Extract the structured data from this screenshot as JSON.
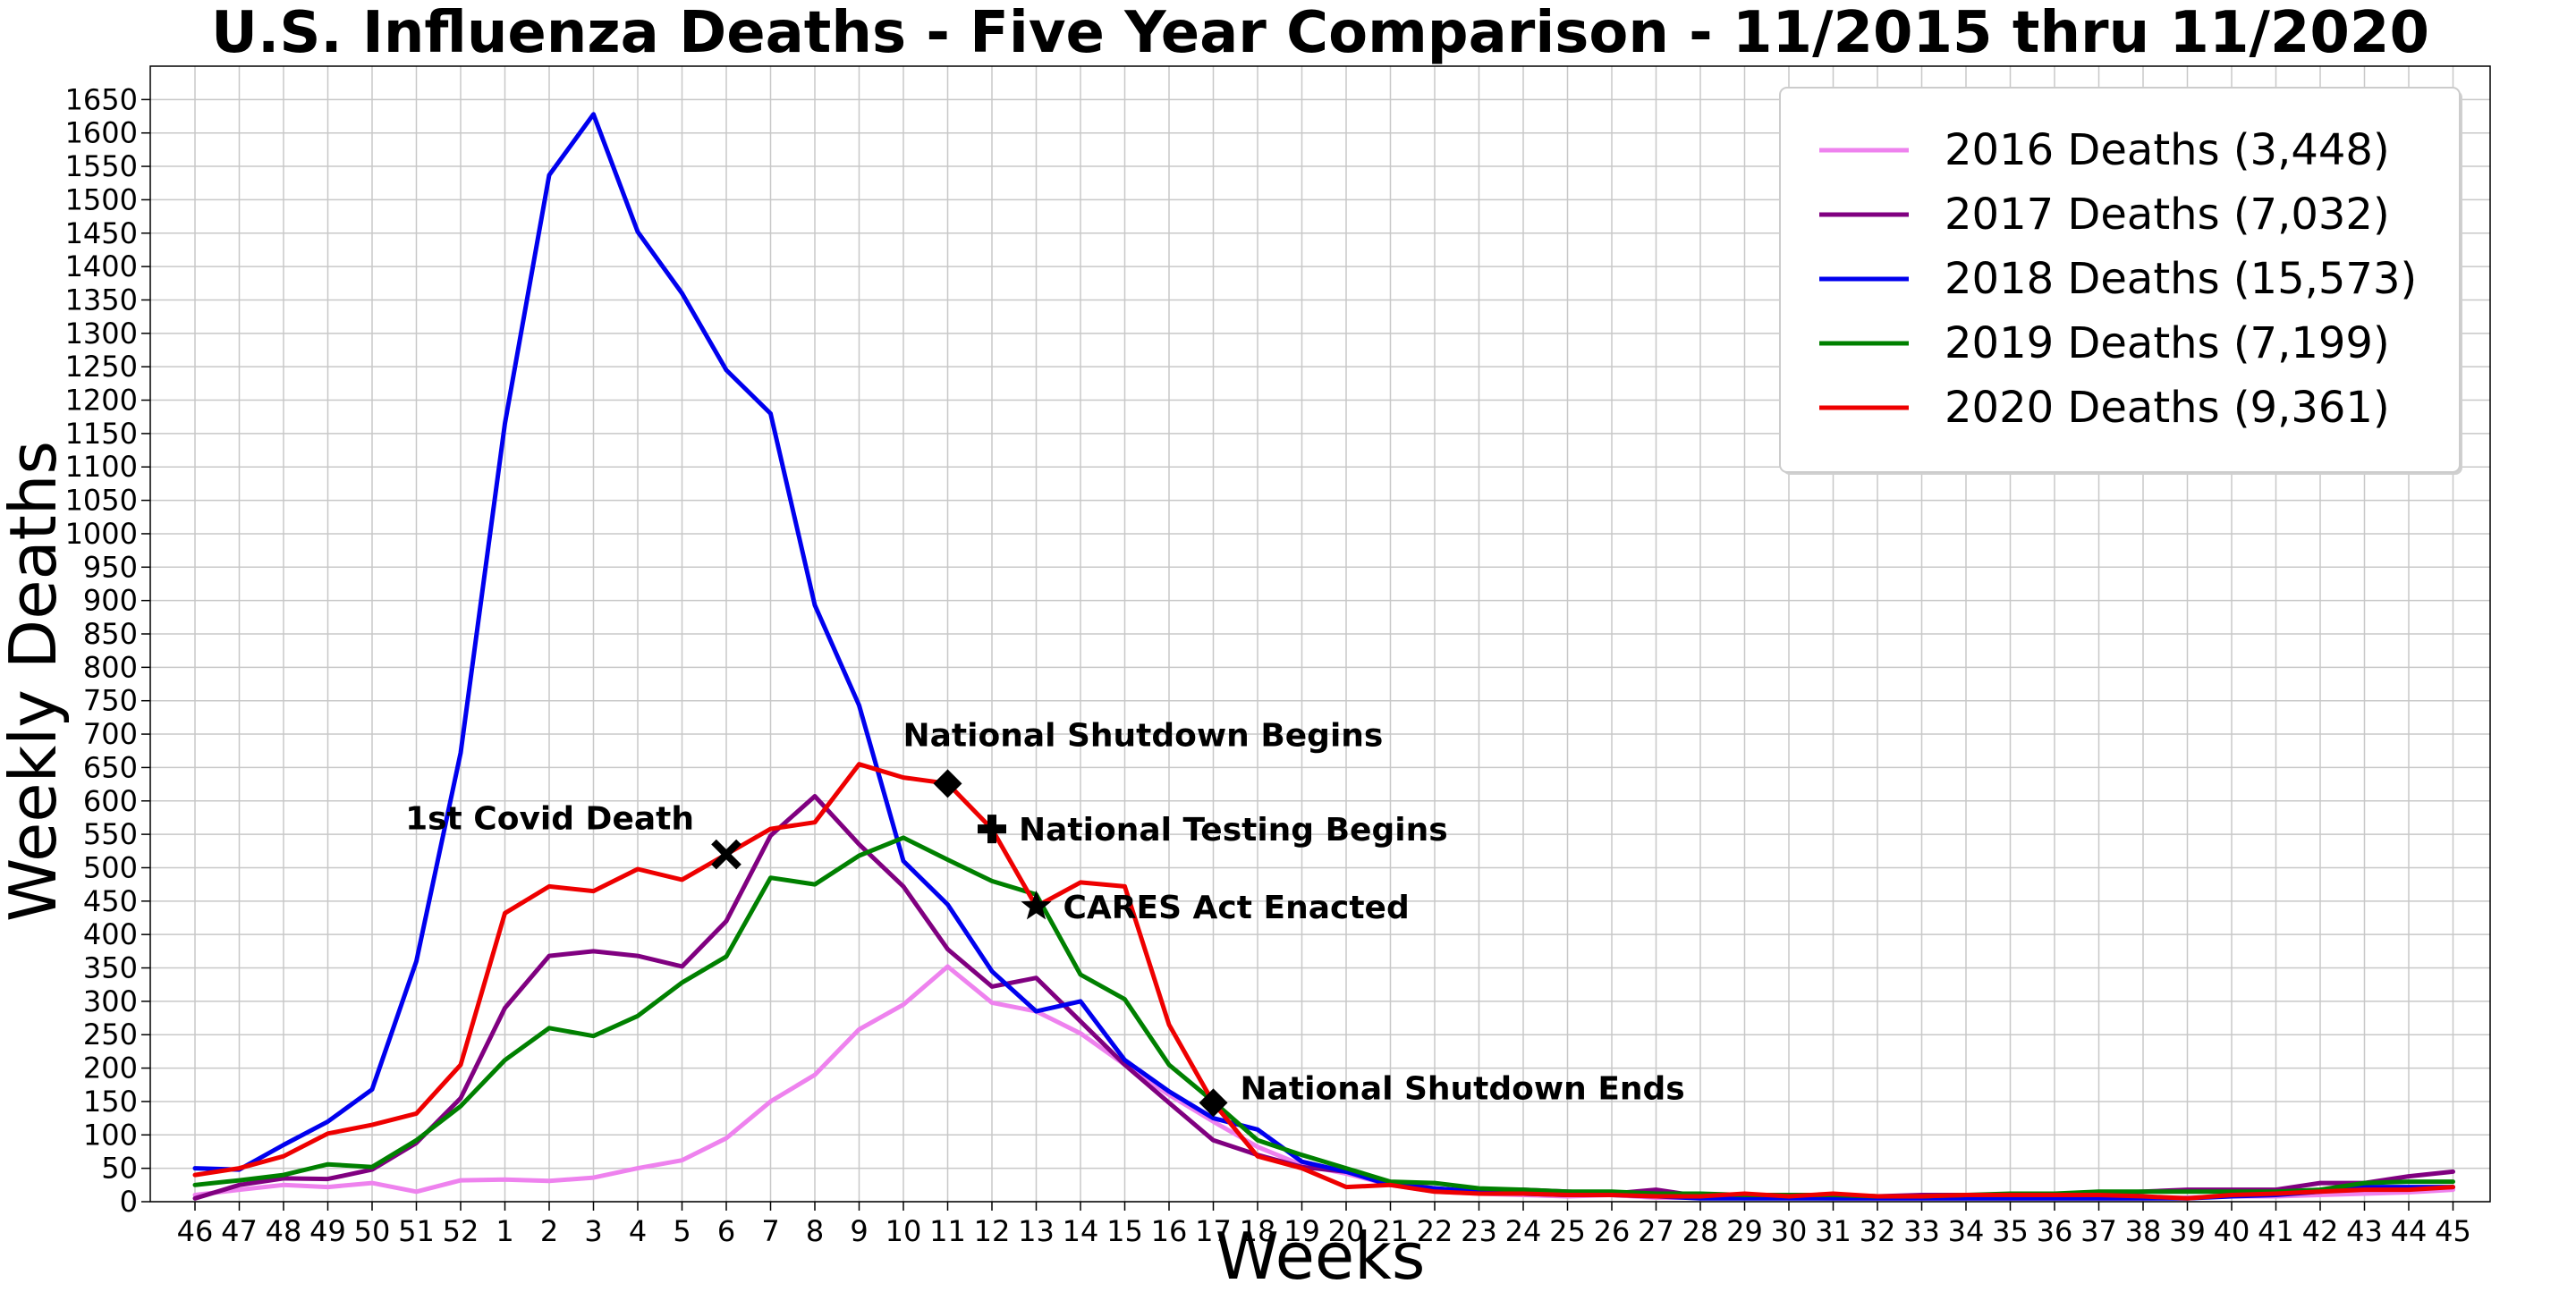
{
  "chart_data": {
    "type": "line",
    "title": "U.S. Influenza Deaths - Five Year Comparison - 11/2015 thru 11/2020",
    "xlabel": "Weeks",
    "ylabel": "Weekly Deaths",
    "grid": true,
    "legend_position": "top-right",
    "ylim": [
      0,
      1700
    ],
    "yticks": [
      0,
      50,
      100,
      150,
      200,
      250,
      300,
      350,
      400,
      450,
      500,
      550,
      600,
      650,
      700,
      750,
      800,
      850,
      900,
      950,
      1000,
      1050,
      1100,
      1150,
      1200,
      1250,
      1300,
      1350,
      1400,
      1450,
      1500,
      1550,
      1600,
      1650
    ],
    "categories": [
      "46",
      "47",
      "48",
      "49",
      "50",
      "51",
      "52",
      "1",
      "2",
      "3",
      "4",
      "5",
      "6",
      "7",
      "8",
      "9",
      "10",
      "11",
      "12",
      "13",
      "14",
      "15",
      "16",
      "17",
      "18",
      "19",
      "20",
      "21",
      "22",
      "23",
      "24",
      "25",
      "26",
      "27",
      "28",
      "29",
      "30",
      "31",
      "32",
      "33",
      "34",
      "35",
      "36",
      "37",
      "38",
      "39",
      "40",
      "41",
      "42",
      "43",
      "44",
      "45"
    ],
    "series": [
      {
        "name": "2016 Deaths (3,448)",
        "color": "#ee82ee",
        "values": [
          10,
          18,
          25,
          22,
          28,
          15,
          32,
          33,
          31,
          36,
          50,
          62,
          95,
          150,
          190,
          258,
          295,
          352,
          298,
          285,
          252,
          205,
          160,
          120,
          82,
          55,
          42,
          25,
          15,
          12,
          10,
          8,
          10,
          6,
          6,
          6,
          6,
          5,
          5,
          5,
          5,
          5,
          5,
          5,
          5,
          6,
          8,
          8,
          10,
          12,
          14,
          18
        ]
      },
      {
        "name": "2017 Deaths (7,032)",
        "color": "#800080",
        "values": [
          5,
          25,
          35,
          34,
          48,
          88,
          155,
          290,
          368,
          375,
          368,
          352,
          420,
          548,
          607,
          535,
          472,
          378,
          322,
          335,
          270,
          205,
          148,
          92,
          70,
          52,
          45,
          28,
          20,
          15,
          18,
          15,
          12,
          18,
          8,
          10,
          8,
          10,
          8,
          10,
          10,
          10,
          10,
          12,
          15,
          18,
          18,
          18,
          28,
          28,
          38,
          45
        ]
      },
      {
        "name": "2018 Deaths (15,573)",
        "color": "#0000ee",
        "values": [
          50,
          48,
          85,
          120,
          168,
          360,
          672,
          1165,
          1537,
          1628,
          1452,
          1360,
          1245,
          1180,
          893,
          743,
          510,
          445,
          345,
          285,
          300,
          212,
          165,
          125,
          108,
          60,
          45,
          25,
          20,
          15,
          12,
          10,
          10,
          8,
          5,
          5,
          5,
          5,
          5,
          5,
          5,
          5,
          5,
          5,
          5,
          5,
          8,
          10,
          15,
          22,
          22,
          22
        ]
      },
      {
        "name": "2019 Deaths (7,199)",
        "color": "#008000",
        "values": [
          25,
          32,
          40,
          56,
          52,
          92,
          143,
          212,
          260,
          248,
          278,
          328,
          367,
          485,
          475,
          518,
          545,
          512,
          480,
          460,
          340,
          303,
          205,
          150,
          92,
          70,
          50,
          30,
          28,
          20,
          18,
          15,
          15,
          12,
          12,
          10,
          10,
          10,
          8,
          8,
          10,
          12,
          12,
          15,
          15,
          15,
          15,
          15,
          18,
          28,
          30,
          30
        ]
      },
      {
        "name": "2020 Deaths (9,361)",
        "color": "#ee0000",
        "values": [
          40,
          50,
          68,
          102,
          115,
          132,
          205,
          432,
          472,
          465,
          498,
          482,
          520,
          558,
          568,
          655,
          635,
          626,
          558,
          442,
          478,
          472,
          265,
          148,
          68,
          50,
          22,
          25,
          15,
          12,
          12,
          10,
          10,
          8,
          8,
          12,
          8,
          12,
          8,
          8,
          10,
          10,
          10,
          10,
          8,
          5,
          10,
          12,
          15,
          18,
          18,
          22
        ]
      }
    ],
    "annotations": [
      {
        "label": "1st Covid Death",
        "x": "6",
        "y": 520,
        "marker": "x"
      },
      {
        "label": "National Shutdown Begins",
        "x": "11",
        "y": 626,
        "marker": "D"
      },
      {
        "label": "National Testing Begins",
        "x": "12",
        "y": 558,
        "marker": "P"
      },
      {
        "label": "CARES Act Enacted",
        "x": "13",
        "y": 442,
        "marker": "*"
      },
      {
        "label": "National Shutdown Ends",
        "x": "17",
        "y": 148,
        "marker": "D"
      }
    ]
  }
}
